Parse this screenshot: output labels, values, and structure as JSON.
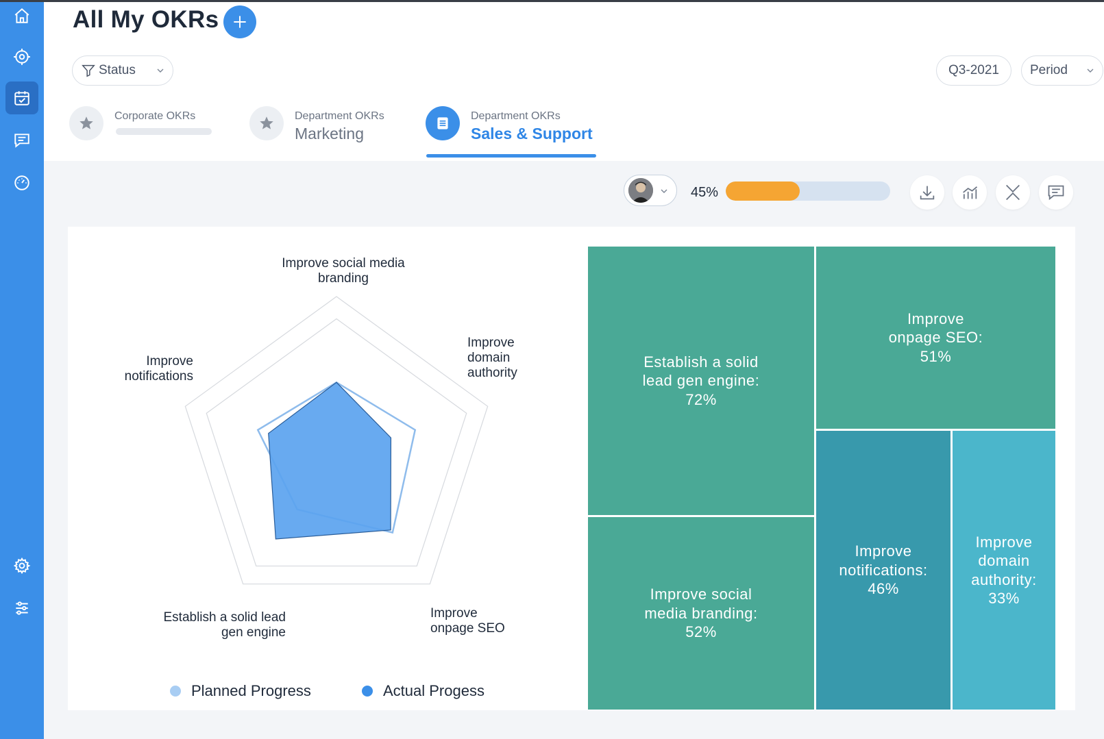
{
  "header": {
    "title": "All My OKRs",
    "filter_label": "Status",
    "quarter": "Q3-2021",
    "period_label": "Period"
  },
  "tabs": [
    {
      "sub": "Corporate OKRs",
      "main": ""
    },
    {
      "sub": "Department OKRs",
      "main": "Marketing"
    },
    {
      "sub": "Department OKRs",
      "main": "Sales & Support"
    }
  ],
  "toolbar": {
    "progress_label": "45%",
    "progress_value": 45
  },
  "colors": {
    "accent": "#3b8fe8",
    "progress": "#f5a533",
    "treemap_green": "#4aa996",
    "treemap_teal": "#3899ac",
    "treemap_cyan": "#4bb6cb"
  },
  "chart_data": [
    {
      "type": "radar",
      "axes": [
        "Improve social media branding",
        "Improve domain authority",
        "Improve onpage SEO",
        "Establish a solid lead gen engine",
        "Improve notifications"
      ],
      "axis_labels": [
        [
          "Improve social media",
          "branding"
        ],
        [
          "Improve",
          "domain",
          "authority"
        ],
        [
          "Improve",
          "onpage SEO"
        ],
        [
          "Establish a solid lead",
          "gen engine"
        ],
        [
          "Improve",
          "notifications"
        ]
      ],
      "series": [
        {
          "name": "Planned Progress",
          "color": "#8fbcec",
          "values": [
            0.46,
            0.52,
            0.6,
            0.42,
            0.52
          ]
        },
        {
          "name": "Actual Progess",
          "color": "#3b8fe8",
          "values": [
            0.46,
            0.36,
            0.58,
            0.65,
            0.45
          ]
        }
      ],
      "range": [
        0,
        1
      ],
      "legend": "bottom"
    },
    {
      "type": "treemap",
      "items": [
        {
          "label": "Establish a solid lead gen engine",
          "lines": [
            "Establish a solid",
            "lead gen engine:",
            "72%"
          ],
          "value": 72
        },
        {
          "label": "Improve onpage SEO",
          "lines": [
            "Improve",
            "onpage SEO:",
            "51%"
          ],
          "value": 51
        },
        {
          "label": "Improve social media branding",
          "lines": [
            "Improve social",
            "media branding:",
            "52%"
          ],
          "value": 52
        },
        {
          "label": "Improve notifications",
          "lines": [
            "Improve",
            "notifications:",
            "46%"
          ],
          "value": 46
        },
        {
          "label": "Improve domain authority",
          "lines": [
            "Improve",
            "domain",
            "authority:",
            "33%"
          ],
          "value": 33
        }
      ]
    }
  ]
}
